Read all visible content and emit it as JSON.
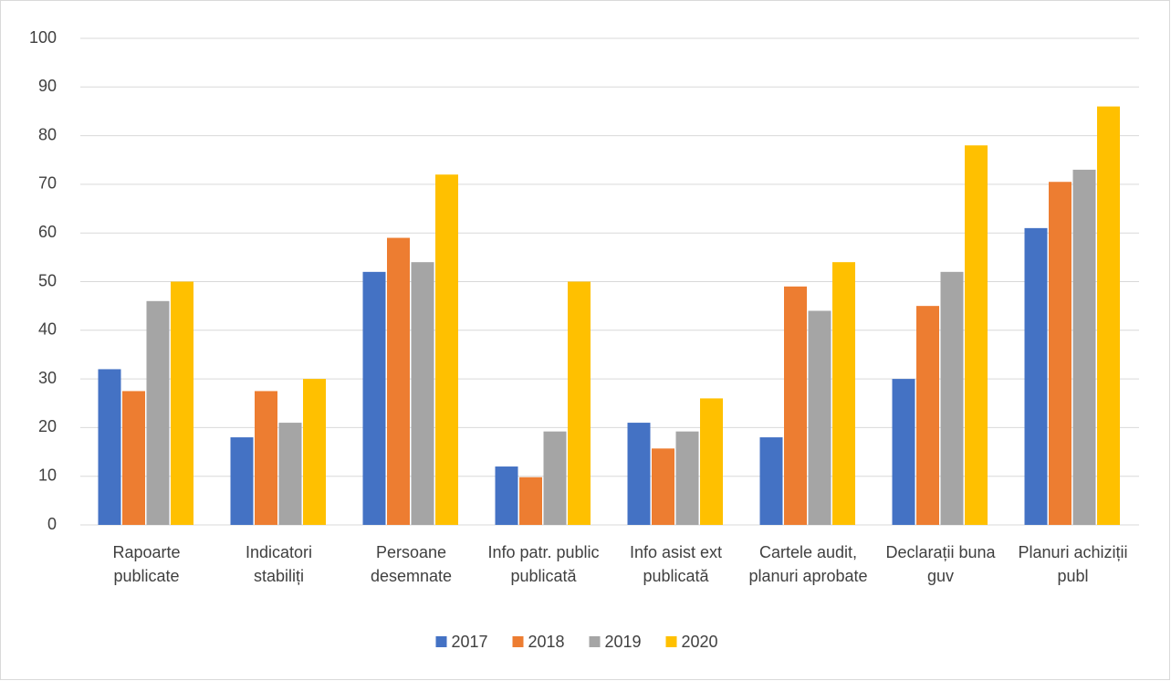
{
  "chart_data": {
    "type": "bar",
    "categories": [
      "Rapoarte publicate",
      "Indicatori stabiliți",
      "Persoane desemnate",
      "Info patr. public publicată",
      "Info asist ext publicată",
      "Cartele audit, planuri aprobate",
      "Declarații buna guv",
      "Planuri achiziții publ"
    ],
    "series": [
      {
        "name": "2017",
        "color": "#4472c4",
        "values": [
          32,
          18,
          52,
          12,
          21,
          18,
          30,
          61
        ]
      },
      {
        "name": "2018",
        "color": "#ed7d31",
        "values": [
          27.5,
          27.5,
          59,
          9.8,
          15.7,
          49,
          45,
          70.5
        ]
      },
      {
        "name": "2019",
        "color": "#a5a5a5",
        "values": [
          46,
          21,
          54,
          19.2,
          19.2,
          44,
          52,
          73
        ]
      },
      {
        "name": "2020",
        "color": "#ffc000",
        "values": [
          50,
          30,
          72,
          50,
          26,
          54,
          78,
          86
        ]
      }
    ],
    "ylim": [
      0,
      100
    ],
    "yticks": [
      0,
      10,
      20,
      30,
      40,
      50,
      60,
      70,
      80,
      90,
      100
    ],
    "grid": true,
    "legend": "bottom"
  }
}
